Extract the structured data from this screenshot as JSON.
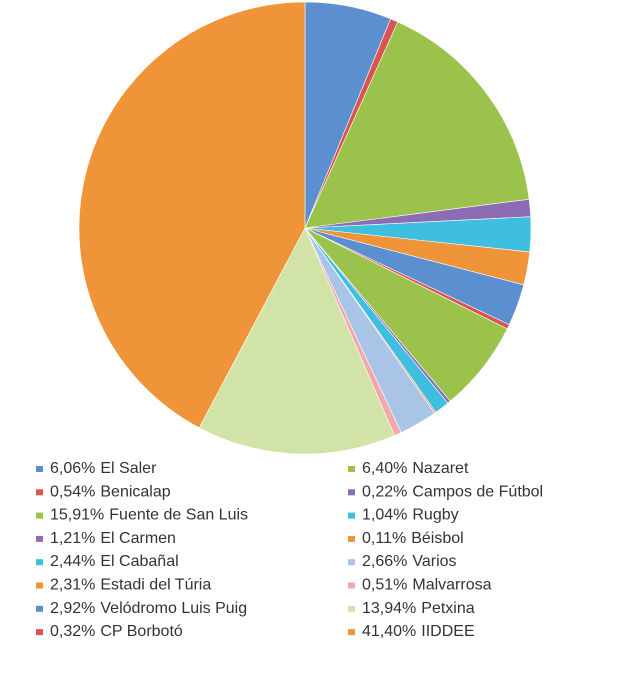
{
  "chart_data": {
    "type": "pie",
    "categories": [
      "El Saler",
      "Benicalap",
      "Fuente de San Luis",
      "El Carmen",
      "El Cabañal",
      "Estadi del Túria",
      "Velódromo Luis Puig",
      "CP Borbotó",
      "Nazaret",
      "Campos de Fútbol",
      "Rugby",
      "Béisbol",
      "Varios",
      "Malvarrosa",
      "Petxina",
      "IIDDEE"
    ],
    "values": [
      6.06,
      0.54,
      15.91,
      1.21,
      2.44,
      2.31,
      2.92,
      0.32,
      6.4,
      0.22,
      1.04,
      0.11,
      2.66,
      0.51,
      13.94,
      41.4
    ],
    "value_labels": [
      "6,06%",
      "0,54%",
      "15,91%",
      "1,21%",
      "2,44%",
      "2,31%",
      "2,92%",
      "0,32%",
      "6,40%",
      "0,22%",
      "1,04%",
      "0,11%",
      "2,66%",
      "0,51%",
      "13,94%",
      "41,40%"
    ],
    "colors": [
      "#5b8fd0",
      "#d9534f",
      "#9bc24a",
      "#8e6bb5",
      "#3fbfe0",
      "#f0943a",
      "#5b8fd0",
      "#d9534f",
      "#9bc24a",
      "#8e6bb5",
      "#3fbfe0",
      "#f0943a",
      "#a9c4e6",
      "#f2a9a9",
      "#d2e3a8",
      "#f0943a"
    ]
  }
}
